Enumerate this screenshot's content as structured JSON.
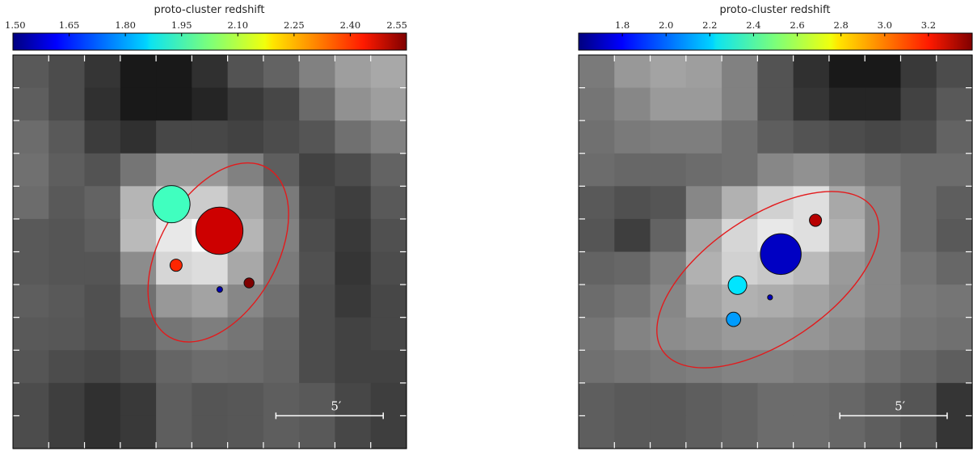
{
  "chart_data": [
    {
      "type": "heatmap",
      "panel": "left",
      "colorbar": {
        "label": "proto-cluster redshift",
        "range": [
          1.5,
          2.55
        ],
        "ticks": [
          "1.50",
          "1.65",
          "1.80",
          "1.95",
          "2.10",
          "2.25",
          "2.40",
          "2.55"
        ],
        "colormap": "jet",
        "placement": "top"
      },
      "heatmap": {
        "rows": 12,
        "cols": 11,
        "gray_levels": [
          [
            0.28,
            0.22,
            0.12,
            0.0,
            0.0,
            0.1,
            0.25,
            0.32,
            0.45,
            0.58,
            0.62
          ],
          [
            0.3,
            0.22,
            0.1,
            0.0,
            0.0,
            0.05,
            0.14,
            0.2,
            0.35,
            0.52,
            0.58
          ],
          [
            0.36,
            0.28,
            0.15,
            0.1,
            0.2,
            0.2,
            0.18,
            0.22,
            0.26,
            0.38,
            0.45
          ],
          [
            0.38,
            0.3,
            0.25,
            0.4,
            0.55,
            0.55,
            0.45,
            0.3,
            0.18,
            0.22,
            0.32
          ],
          [
            0.36,
            0.28,
            0.32,
            0.68,
            0.78,
            0.78,
            0.62,
            0.42,
            0.2,
            0.16,
            0.28
          ],
          [
            0.28,
            0.26,
            0.3,
            0.7,
            0.9,
            0.98,
            0.68,
            0.45,
            0.22,
            0.14,
            0.24
          ],
          [
            0.28,
            0.26,
            0.26,
            0.5,
            0.82,
            0.85,
            0.62,
            0.42,
            0.24,
            0.12,
            0.22
          ],
          [
            0.3,
            0.28,
            0.24,
            0.38,
            0.55,
            0.6,
            0.48,
            0.38,
            0.22,
            0.14,
            0.2
          ],
          [
            0.28,
            0.27,
            0.24,
            0.3,
            0.4,
            0.44,
            0.4,
            0.33,
            0.22,
            0.18,
            0.2
          ],
          [
            0.26,
            0.22,
            0.2,
            0.24,
            0.33,
            0.36,
            0.35,
            0.32,
            0.22,
            0.18,
            0.18
          ],
          [
            0.22,
            0.16,
            0.1,
            0.14,
            0.3,
            0.26,
            0.27,
            0.3,
            0.28,
            0.2,
            0.16
          ],
          [
            0.22,
            0.16,
            0.1,
            0.14,
            0.3,
            0.26,
            0.27,
            0.3,
            0.28,
            0.2,
            0.16
          ]
        ]
      },
      "ellipse": {
        "cx": 5.74,
        "cy": 6.02,
        "rx": 2.73,
        "ry": 1.78,
        "rotation_deg": -60,
        "color": "#e31a1c"
      },
      "markers": [
        {
          "x": 4.43,
          "y": 4.55,
          "r": 0.52,
          "redshift": 1.96
        },
        {
          "x": 5.77,
          "y": 5.36,
          "r": 0.66,
          "redshift": 2.47
        },
        {
          "x": 4.56,
          "y": 6.41,
          "r": 0.17,
          "redshift": 2.38
        },
        {
          "x": 6.6,
          "y": 6.95,
          "r": 0.14,
          "redshift": 2.55
        },
        {
          "x": 5.78,
          "y": 7.15,
          "r": 0.08,
          "redshift": 1.55
        }
      ],
      "scale_bar": {
        "label": "5′",
        "length_cells": 3.0,
        "start_x": 7.35,
        "y": 11.0
      }
    },
    {
      "type": "heatmap",
      "panel": "right",
      "colorbar": {
        "label": "proto-cluster redshift",
        "range": [
          1.6,
          3.4
        ],
        "ticks": [
          "1.8",
          "2.0",
          "2.2",
          "2.4",
          "2.6",
          "2.8",
          "3.0",
          "3.2"
        ],
        "tick_values": [
          1.8,
          2.0,
          2.2,
          2.4,
          2.6,
          2.8,
          3.0,
          3.2
        ],
        "colormap": "jet",
        "placement": "top"
      },
      "heatmap": {
        "rows": 12,
        "cols": 11,
        "gray_levels": [
          [
            0.42,
            0.55,
            0.6,
            0.58,
            0.45,
            0.25,
            0.1,
            0.0,
            0.0,
            0.14,
            0.22
          ],
          [
            0.4,
            0.48,
            0.56,
            0.56,
            0.45,
            0.25,
            0.12,
            0.05,
            0.05,
            0.18,
            0.28
          ],
          [
            0.38,
            0.42,
            0.44,
            0.44,
            0.38,
            0.3,
            0.25,
            0.22,
            0.2,
            0.22,
            0.32
          ],
          [
            0.36,
            0.34,
            0.34,
            0.36,
            0.38,
            0.48,
            0.52,
            0.46,
            0.4,
            0.36,
            0.36
          ],
          [
            0.28,
            0.24,
            0.26,
            0.48,
            0.66,
            0.8,
            0.86,
            0.62,
            0.48,
            0.36,
            0.3
          ],
          [
            0.26,
            0.16,
            0.32,
            0.62,
            0.82,
            0.9,
            0.86,
            0.66,
            0.48,
            0.36,
            0.28
          ],
          [
            0.32,
            0.34,
            0.44,
            0.66,
            0.8,
            0.76,
            0.7,
            0.56,
            0.48,
            0.4,
            0.34
          ],
          [
            0.36,
            0.4,
            0.48,
            0.6,
            0.66,
            0.64,
            0.6,
            0.54,
            0.48,
            0.42,
            0.4
          ],
          [
            0.4,
            0.46,
            0.5,
            0.52,
            0.56,
            0.56,
            0.54,
            0.5,
            0.44,
            0.4,
            0.38
          ],
          [
            0.38,
            0.4,
            0.42,
            0.44,
            0.46,
            0.46,
            0.44,
            0.42,
            0.38,
            0.34,
            0.3
          ],
          [
            0.3,
            0.28,
            0.28,
            0.3,
            0.32,
            0.36,
            0.36,
            0.34,
            0.3,
            0.26,
            0.12
          ],
          [
            0.3,
            0.28,
            0.28,
            0.3,
            0.32,
            0.36,
            0.36,
            0.34,
            0.3,
            0.26,
            0.12
          ]
        ]
      },
      "ellipse": {
        "cx": 5.29,
        "cy": 6.85,
        "rx": 3.55,
        "ry": 1.92,
        "rotation_deg": -34,
        "color": "#e31a1c"
      },
      "markers": [
        {
          "x": 5.65,
          "y": 6.07,
          "r": 0.57,
          "redshift": 1.72
        },
        {
          "x": 6.62,
          "y": 5.04,
          "r": 0.17,
          "redshift": 3.3
        },
        {
          "x": 4.44,
          "y": 7.02,
          "r": 0.26,
          "redshift": 2.23
        },
        {
          "x": 4.33,
          "y": 8.06,
          "r": 0.2,
          "redshift": 2.1
        },
        {
          "x": 5.35,
          "y": 7.39,
          "r": 0.07,
          "redshift": 1.72
        }
      ],
      "scale_bar": {
        "label": "5′",
        "length_cells": 3.0,
        "start_x": 7.3,
        "y": 11.0
      }
    }
  ]
}
